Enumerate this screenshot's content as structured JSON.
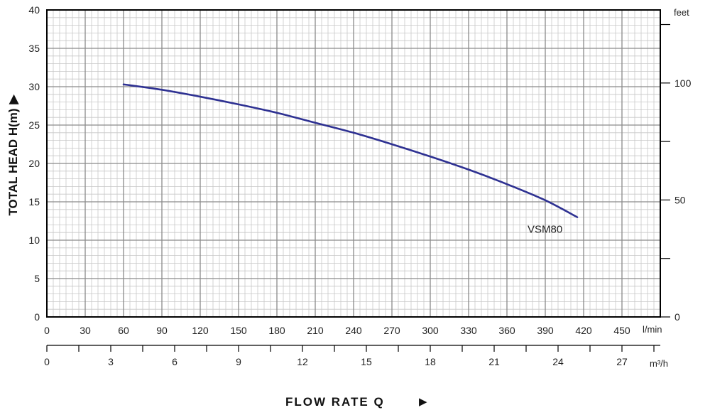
{
  "chart_data": {
    "type": "line",
    "ylabel": "TOTAL HEAD H(m)",
    "ylabel_arrow": "▶",
    "xlabel": "FLOW RATE Q",
    "xlabel_arrow": "▶",
    "x_unit": "l/min",
    "x2_unit": "m³/h",
    "y2_unit": "feet",
    "xlim": [
      0,
      480
    ],
    "ylim": [
      0,
      40
    ],
    "x_ticks": [
      "0",
      "30",
      "60",
      "90",
      "120",
      "150",
      "180",
      "210",
      "240",
      "270",
      "300",
      "330",
      "360",
      "390",
      "420",
      "450"
    ],
    "y_ticks": [
      "0",
      "5",
      "10",
      "15",
      "20",
      "25",
      "30",
      "35",
      "40"
    ],
    "x2_ticks": [
      "0",
      "3",
      "6",
      "9",
      "12",
      "15",
      "18",
      "21",
      "24",
      "27"
    ],
    "y2_ticks": [
      "0",
      "50",
      "100"
    ],
    "grid": true,
    "series": [
      {
        "name": "VSM80",
        "color": "#2e3192",
        "x": [
          60,
          90,
          120,
          150,
          180,
          210,
          240,
          270,
          300,
          330,
          360,
          390,
          415
        ],
        "y": [
          30.3,
          29.6,
          28.7,
          27.7,
          26.6,
          25.3,
          24.0,
          22.5,
          20.9,
          19.2,
          17.3,
          15.2,
          13.0
        ]
      }
    ]
  }
}
